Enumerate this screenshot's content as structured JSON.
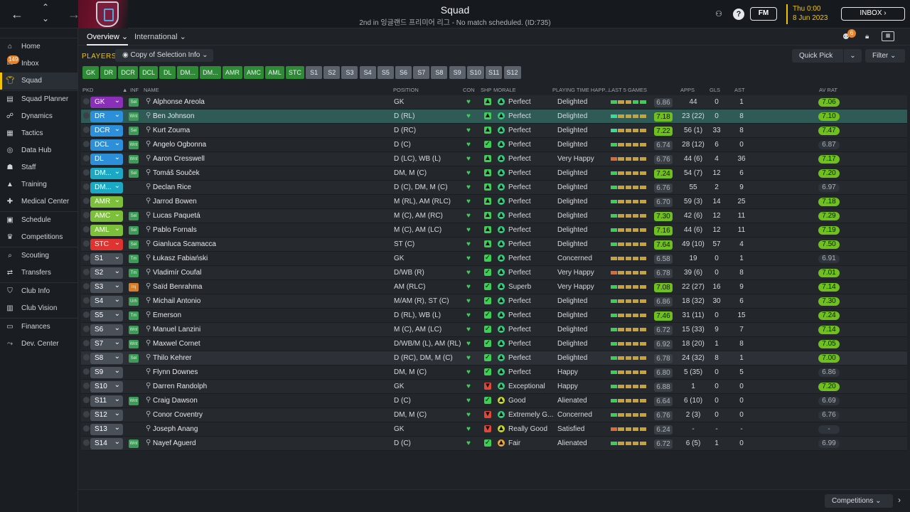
{
  "header": {
    "title": "Squad",
    "subtitle": "2nd in 잉글랜드 프리미어 리그 - No match scheduled. (ID:735)",
    "fm_label": "FM",
    "day": "Thu 0:00",
    "date": "8 Jun 2023",
    "inbox_label": "INBOX"
  },
  "sidebar": {
    "items": [
      {
        "label": "Home",
        "icon": "home-icon"
      },
      {
        "label": "Inbox",
        "icon": "inbox-icon",
        "badge": "149"
      },
      {
        "label": "Squad",
        "icon": "shirt-icon",
        "active": true
      },
      {
        "label": "Squad Planner",
        "icon": "clipboard-icon"
      },
      {
        "label": "Dynamics",
        "icon": "dynamics-icon"
      },
      {
        "label": "Tactics",
        "icon": "tactics-icon"
      },
      {
        "label": "Data Hub",
        "icon": "data-hub-icon"
      },
      {
        "label": "Staff",
        "icon": "staff-icon"
      },
      {
        "label": "Training",
        "icon": "training-icon"
      },
      {
        "label": "Medical Center",
        "icon": "medical-icon"
      },
      {
        "label": "Schedule",
        "icon": "calendar-icon"
      },
      {
        "label": "Competitions",
        "icon": "trophy-icon"
      },
      {
        "label": "Scouting",
        "icon": "scouting-icon"
      },
      {
        "label": "Transfers",
        "icon": "transfers-icon"
      },
      {
        "label": "Club Info",
        "icon": "shield-icon"
      },
      {
        "label": "Club Vision",
        "icon": "vision-icon"
      },
      {
        "label": "Finances",
        "icon": "finances-icon"
      },
      {
        "label": "Dev. Center",
        "icon": "dev-center-icon"
      }
    ]
  },
  "subnav": {
    "tabs": [
      "Overview",
      "International"
    ],
    "notification_count": "6"
  },
  "toolbar": {
    "players_label": "PLAYERS",
    "copy_label": "Copy of Selection Info",
    "quick_pick_label": "Quick Pick",
    "filter_label": "Filter"
  },
  "position_buttons": [
    "GK",
    "DR",
    "DCR",
    "DCL",
    "DL",
    "DM...",
    "DM...",
    "AMR",
    "AMC",
    "AML",
    "STC",
    "S1",
    "S2",
    "S3",
    "S4",
    "S5",
    "S6",
    "S7",
    "S8",
    "S9",
    "S10",
    "S11",
    "S12"
  ],
  "columns": {
    "pkd": "PKD",
    "inf": "INF",
    "name": "NAME",
    "position": "POSITION",
    "con": "CON",
    "shp": "SHP",
    "morale": "MORALE",
    "playing_time": "PLAYING TIME HAPP...",
    "last5": "LAST 5 GAMES",
    "apps": "APPS",
    "gls": "GLS",
    "ast": "AST",
    "av_rat": "AV RAT"
  },
  "players": [
    {
      "slot": "GK",
      "slot_color": "#8a2fb8",
      "inf": "Sel",
      "name": "Alphonse Areola",
      "position": "GK",
      "shp": "up",
      "morale": "Perfect",
      "morale_color": "#2fd27a",
      "playing": "Delighted",
      "last5": [
        "g",
        "y",
        "y",
        "g",
        "g"
      ],
      "rating": "6.86",
      "rating_hi": false,
      "apps": "44",
      "gls": "0",
      "ast": "1",
      "av_rat": "7.06",
      "av_hi": true
    },
    {
      "slot": "DR",
      "slot_color": "#2d8fd9",
      "inf": "Wnt",
      "name": "Ben Johnson",
      "position": "D (RL)",
      "shp": "up",
      "morale": "Perfect",
      "morale_color": "#2fd27a",
      "playing": "Delighted",
      "last5": [
        "b",
        "y",
        "y",
        "y",
        "y"
      ],
      "rating": "7.18",
      "rating_hi": true,
      "apps": "23 (22)",
      "gls": "0",
      "ast": "8",
      "av_rat": "7.10",
      "av_hi": true
    },
    {
      "slot": "DCR",
      "slot_color": "#2d8fd9",
      "inf": "Sel",
      "name": "Kurt Zouma",
      "position": "D (RC)",
      "shp": "up",
      "morale": "Perfect",
      "morale_color": "#2fd27a",
      "playing": "Delighted",
      "last5": [
        "b",
        "y",
        "y",
        "y",
        "y"
      ],
      "rating": "7.22",
      "rating_hi": true,
      "apps": "56 (1)",
      "gls": "33",
      "ast": "8",
      "av_rat": "7.47",
      "av_hi": true
    },
    {
      "slot": "DCL",
      "slot_color": "#2d8fd9",
      "inf": "Wnt",
      "name": "Angelo Ogbonna",
      "position": "D (C)",
      "shp": "ok",
      "morale": "Perfect",
      "morale_color": "#2fd27a",
      "playing": "Delighted",
      "last5": [
        "g",
        "y",
        "y",
        "y",
        "y"
      ],
      "rating": "6.74",
      "rating_hi": false,
      "apps": "28 (12)",
      "gls": "6",
      "ast": "0",
      "av_rat": "6.87",
      "av_hi": false
    },
    {
      "slot": "DL",
      "slot_color": "#2d8fd9",
      "inf": "Wnt",
      "name": "Aaron Cresswell",
      "position": "D (LC), WB (L)",
      "shp": "up",
      "morale": "Perfect",
      "morale_color": "#2fd27a",
      "playing": "Very Happy",
      "last5": [
        "o",
        "y",
        "y",
        "y",
        "y"
      ],
      "rating": "6.76",
      "rating_hi": false,
      "apps": "44 (6)",
      "gls": "4",
      "ast": "36",
      "av_rat": "7.17",
      "av_hi": true
    },
    {
      "slot": "DM...",
      "slot_color": "#1aa8c4",
      "inf": "Sel",
      "name": "Tomáš Souček",
      "position": "DM, M (C)",
      "shp": "up",
      "morale": "Perfect",
      "morale_color": "#2fd27a",
      "playing": "Delighted",
      "last5": [
        "g",
        "y",
        "y",
        "y",
        "y"
      ],
      "rating": "7.24",
      "rating_hi": true,
      "apps": "54 (7)",
      "gls": "12",
      "ast": "6",
      "av_rat": "7.20",
      "av_hi": true
    },
    {
      "slot": "DM...",
      "slot_color": "#1aa8c4",
      "inf": "",
      "name": "Declan Rice",
      "position": "D (C), DM, M (C)",
      "shp": "up",
      "morale": "Perfect",
      "morale_color": "#2fd27a",
      "playing": "Delighted",
      "last5": [
        "g",
        "y",
        "y",
        "y",
        "y"
      ],
      "rating": "6.76",
      "rating_hi": false,
      "apps": "55",
      "gls": "2",
      "ast": "9",
      "av_rat": "6.97",
      "av_hi": false
    },
    {
      "slot": "AMR",
      "slot_color": "#7cbf3a",
      "inf": "",
      "name": "Jarrod Bowen",
      "position": "M (RL), AM (RLC)",
      "shp": "up",
      "morale": "Perfect",
      "morale_color": "#2fd27a",
      "playing": "Delighted",
      "last5": [
        "g",
        "y",
        "y",
        "y",
        "y"
      ],
      "rating": "6.70",
      "rating_hi": false,
      "apps": "59 (3)",
      "gls": "14",
      "ast": "25",
      "av_rat": "7.18",
      "av_hi": true
    },
    {
      "slot": "AMC",
      "slot_color": "#7cbf3a",
      "inf": "Sel",
      "name": "Lucas Paquetá",
      "position": "M (C), AM (RC)",
      "shp": "up",
      "morale": "Perfect",
      "morale_color": "#2fd27a",
      "playing": "Delighted",
      "last5": [
        "g",
        "y",
        "y",
        "y",
        "y"
      ],
      "rating": "7.30",
      "rating_hi": true,
      "apps": "42 (6)",
      "gls": "12",
      "ast": "11",
      "av_rat": "7.29",
      "av_hi": true
    },
    {
      "slot": "AML",
      "slot_color": "#7cbf3a",
      "inf": "Sel",
      "name": "Pablo Fornals",
      "position": "M (C), AM (LC)",
      "shp": "up",
      "morale": "Perfect",
      "morale_color": "#2fd27a",
      "playing": "Delighted",
      "last5": [
        "g",
        "y",
        "y",
        "y",
        "y"
      ],
      "rating": "7.16",
      "rating_hi": true,
      "apps": "44 (6)",
      "gls": "12",
      "ast": "11",
      "av_rat": "7.19",
      "av_hi": true
    },
    {
      "slot": "STC",
      "slot_color": "#e0332f",
      "inf": "Sel",
      "name": "Gianluca Scamacca",
      "position": "ST (C)",
      "shp": "up",
      "morale": "Perfect",
      "morale_color": "#2fd27a",
      "playing": "Delighted",
      "last5": [
        "g",
        "y",
        "y",
        "y",
        "y"
      ],
      "rating": "7.64",
      "rating_hi": true,
      "apps": "49 (10)",
      "gls": "57",
      "ast": "4",
      "av_rat": "7.50",
      "av_hi": true
    },
    {
      "slot": "S1",
      "slot_color": "#4a5058",
      "inf": "Tm",
      "name": "Łukasz Fabiański",
      "position": "GK",
      "shp": "ok",
      "morale": "Perfect",
      "morale_color": "#2fd27a",
      "playing": "Concerned",
      "last5": [
        "y",
        "y",
        "y",
        "y",
        "y"
      ],
      "rating": "6.58",
      "rating_hi": false,
      "apps": "19",
      "gls": "0",
      "ast": "1",
      "av_rat": "6.91",
      "av_hi": false
    },
    {
      "slot": "S2",
      "slot_color": "#4a5058",
      "inf": "Tm",
      "name": "Vladimír Coufal",
      "position": "D/WB (R)",
      "shp": "ok",
      "morale": "Perfect",
      "morale_color": "#2fd27a",
      "playing": "Very Happy",
      "last5": [
        "o",
        "y",
        "y",
        "y",
        "y"
      ],
      "rating": "6.78",
      "rating_hi": false,
      "apps": "39 (6)",
      "gls": "0",
      "ast": "8",
      "av_rat": "7.01",
      "av_hi": true
    },
    {
      "slot": "S3",
      "slot_color": "#4a5058",
      "inf": "Inj",
      "name": "Saïd Benrahma",
      "position": "AM (RLC)",
      "shp": "ok",
      "morale": "Superb",
      "morale_color": "#2fd27a",
      "playing": "Very Happy",
      "last5": [
        "g",
        "y",
        "y",
        "y",
        "y"
      ],
      "rating": "7.08",
      "rating_hi": true,
      "apps": "22 (27)",
      "gls": "16",
      "ast": "9",
      "av_rat": "7.14",
      "av_hi": true
    },
    {
      "slot": "S4",
      "slot_color": "#4a5058",
      "inf": "Urh",
      "name": "Michail Antonio",
      "position": "M/AM (R), ST (C)",
      "shp": "ok",
      "morale": "Perfect",
      "morale_color": "#2fd27a",
      "playing": "Delighted",
      "last5": [
        "g",
        "y",
        "y",
        "y",
        "y"
      ],
      "rating": "6.86",
      "rating_hi": false,
      "apps": "18 (32)",
      "gls": "30",
      "ast": "6",
      "av_rat": "7.30",
      "av_hi": true
    },
    {
      "slot": "S5",
      "slot_color": "#4a5058",
      "inf": "Tm",
      "name": "Emerson",
      "position": "D (RL), WB (L)",
      "shp": "ok",
      "morale": "Perfect",
      "morale_color": "#2fd27a",
      "playing": "Delighted",
      "last5": [
        "g",
        "y",
        "y",
        "y",
        "y"
      ],
      "rating": "7.46",
      "rating_hi": true,
      "apps": "31 (11)",
      "gls": "0",
      "ast": "15",
      "av_rat": "7.24",
      "av_hi": true
    },
    {
      "slot": "S6",
      "slot_color": "#4a5058",
      "inf": "Wnt",
      "name": "Manuel Lanzini",
      "position": "M (C), AM (LC)",
      "shp": "ok",
      "morale": "Perfect",
      "morale_color": "#2fd27a",
      "playing": "Delighted",
      "last5": [
        "g",
        "y",
        "y",
        "y",
        "y"
      ],
      "rating": "6.72",
      "rating_hi": false,
      "apps": "15 (33)",
      "gls": "9",
      "ast": "7",
      "av_rat": "7.14",
      "av_hi": true
    },
    {
      "slot": "S7",
      "slot_color": "#4a5058",
      "inf": "Wnt",
      "name": "Maxwel Cornet",
      "position": "D/WB/M (L), AM (RL)",
      "shp": "ok",
      "morale": "Perfect",
      "morale_color": "#2fd27a",
      "playing": "Delighted",
      "last5": [
        "g",
        "y",
        "y",
        "y",
        "y"
      ],
      "rating": "6.92",
      "rating_hi": false,
      "apps": "18 (20)",
      "gls": "1",
      "ast": "8",
      "av_rat": "7.05",
      "av_hi": true
    },
    {
      "slot": "S8",
      "slot_color": "#4a5058",
      "inf": "Sel",
      "name": "Thilo Kehrer",
      "position": "D (RC), DM, M (C)",
      "shp": "ok",
      "morale": "Perfect",
      "morale_color": "#2fd27a",
      "playing": "Delighted",
      "last5": [
        "g",
        "y",
        "y",
        "y",
        "y"
      ],
      "rating": "6.78",
      "rating_hi": false,
      "apps": "24 (32)",
      "gls": "8",
      "ast": "1",
      "av_rat": "7.00",
      "av_hi": true
    },
    {
      "slot": "S9",
      "slot_color": "#4a5058",
      "inf": "",
      "name": "Flynn Downes",
      "position": "DM, M (C)",
      "shp": "ok",
      "morale": "Perfect",
      "morale_color": "#2fd27a",
      "playing": "Happy",
      "last5": [
        "g",
        "y",
        "y",
        "y",
        "y"
      ],
      "rating": "6.80",
      "rating_hi": false,
      "apps": "5 (35)",
      "gls": "0",
      "ast": "5",
      "av_rat": "6.86",
      "av_hi": false
    },
    {
      "slot": "S10",
      "slot_color": "#4a5058",
      "inf": "",
      "name": "Darren Randolph",
      "position": "GK",
      "shp": "down",
      "morale": "Exceptional",
      "morale_color": "#2fd27a",
      "playing": "Happy",
      "last5": [
        "g",
        "y",
        "y",
        "y",
        "y"
      ],
      "rating": "6.88",
      "rating_hi": false,
      "apps": "1",
      "gls": "0",
      "ast": "0",
      "av_rat": "7.20",
      "av_hi": true
    },
    {
      "slot": "S11",
      "slot_color": "#4a5058",
      "inf": "Wnt",
      "name": "Craig Dawson",
      "position": "D (C)",
      "shp": "ok",
      "morale": "Good",
      "morale_color": "#c6d82a",
      "playing": "Alienated",
      "last5": [
        "g",
        "y",
        "y",
        "y",
        "y"
      ],
      "rating": "6.64",
      "rating_hi": false,
      "apps": "6 (10)",
      "gls": "0",
      "ast": "0",
      "av_rat": "6.69",
      "av_hi": false
    },
    {
      "slot": "S12",
      "slot_color": "#4a5058",
      "inf": "",
      "name": "Conor Coventry",
      "position": "DM, M (C)",
      "shp": "down",
      "morale": "Extremely G...",
      "morale_color": "#2fd27a",
      "playing": "Concerned",
      "last5": [
        "g",
        "y",
        "y",
        "y",
        "y"
      ],
      "rating": "6.76",
      "rating_hi": false,
      "apps": "2 (3)",
      "gls": "0",
      "ast": "0",
      "av_rat": "6.76",
      "av_hi": false
    },
    {
      "slot": "S13",
      "slot_color": "#4a5058",
      "inf": "",
      "name": "Joseph Anang",
      "position": "GK",
      "shp": "down",
      "morale": "Really Good",
      "morale_color": "#c6d82a",
      "playing": "Satisfied",
      "last5": [
        "o",
        "y",
        "y",
        "y",
        "y"
      ],
      "rating": "6.24",
      "rating_hi": false,
      "apps": "-",
      "gls": "-",
      "ast": "-",
      "av_rat": "-",
      "av_hi": false
    },
    {
      "slot": "S14",
      "slot_color": "#4a5058",
      "inf": "Wnt",
      "name": "Nayef Aguerd",
      "position": "D (C)",
      "shp": "ok",
      "morale": "Fair",
      "morale_color": "#f0a53a",
      "playing": "Alienated",
      "last5": [
        "g",
        "y",
        "y",
        "y",
        "y"
      ],
      "rating": "6.72",
      "rating_hi": false,
      "apps": "6 (5)",
      "gls": "1",
      "ast": "0",
      "av_rat": "6.99",
      "av_hi": false
    }
  ],
  "footer": {
    "competitions_label": "Competitions"
  }
}
